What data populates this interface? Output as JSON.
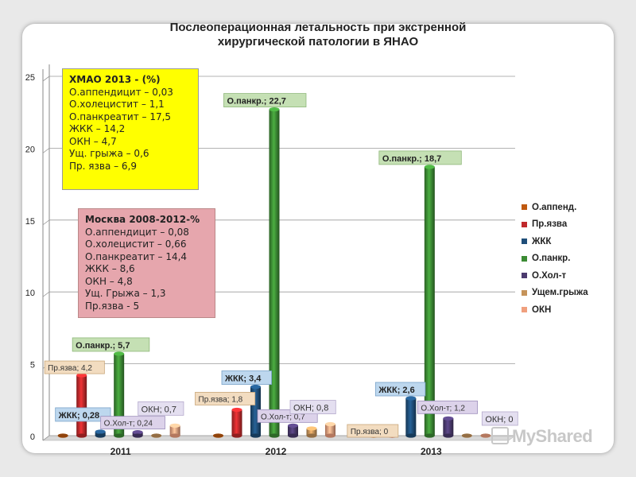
{
  "title_lines": [
    "Послеоперационная  летальность  при  экстренной",
    "хирургической патологии в ЯНАО"
  ],
  "info_boxes": {
    "hmao": {
      "title": "ХМАО 2013 -  (%)",
      "lines": [
        "О.аппендицит – 0,03",
        "О.холецистит – 1,1",
        "О.панкреатит – 17,5",
        "ЖКК – 14,2",
        "ОКН – 4,7",
        "Ущ. грыжа – 0,6",
        "Пр. язва – 6,9"
      ]
    },
    "moscow": {
      "title": "Москва 2008-2012-%",
      "lines": [
        "О.аппендицит – 0,08",
        "О.холецистит – 0,66",
        "О.панкреатит – 14,4",
        "ЖКК – 8,6",
        "ОКН – 4,8",
        "Ущ. Грыжа – 1,3",
        "Пр.язва - 5"
      ]
    }
  },
  "watermark": "MyShared",
  "chart_data": {
    "type": "bar",
    "categories": [
      "2011",
      "2012",
      "2013"
    ],
    "ylim": [
      0,
      25
    ],
    "yticks": [
      "0",
      "5",
      "10",
      "15",
      "20",
      "25"
    ],
    "grid": true,
    "legend_position": "right",
    "series": [
      {
        "name": "О.аппенд.",
        "color": "#c0590f",
        "values": [
          0,
          0,
          0
        ]
      },
      {
        "name": "Пр.язва",
        "color": "#c0292b",
        "values": [
          4.2,
          1.8,
          0
        ]
      },
      {
        "name": "ЖКК",
        "color": "#1f4e79",
        "values": [
          0.28,
          3.4,
          2.6
        ]
      },
      {
        "name": "О.панкр.",
        "color": "#3c8b34",
        "values": [
          5.7,
          22.7,
          18.7
        ]
      },
      {
        "name": "О.Хол-т",
        "color": "#4b3a6e",
        "values": [
          0.24,
          0.7,
          1.2
        ]
      },
      {
        "name": "Ущем.грыжа",
        "color": "#c5935a",
        "values": [
          0,
          0.5,
          0
        ]
      },
      {
        "name": "ОКН",
        "color": "#f0a07e",
        "values": [
          0.7,
          0.8,
          0
        ]
      }
    ],
    "data_labels": [
      {
        "text": "Пр.язва; 4,2",
        "cat": 0,
        "series": 1,
        "style": "tan",
        "dx": -40,
        "dy": -18
      },
      {
        "text": "О.панкр.; 5,7",
        "cat": 0,
        "series": 3,
        "style": "green",
        "dx": -52,
        "dy": -20
      },
      {
        "text": "ЖКК; 0,28",
        "cat": 0,
        "series": 2,
        "style": "blue",
        "dx": -50,
        "dy": -30
      },
      {
        "text": "О.Хол-т; 0,24",
        "cat": 0,
        "series": 4,
        "style": "purple",
        "dx": -40,
        "dy": -20
      },
      {
        "text": "ОКН; 0,7",
        "cat": 0,
        "series": 6,
        "style": "lavender",
        "dx": -40,
        "dy": -30
      },
      {
        "text": "О.панкр.; 22,7",
        "cat": 1,
        "series": 3,
        "style": "green",
        "dx": -57,
        "dy": -20
      },
      {
        "text": "ЖКК; 3,4",
        "cat": 1,
        "series": 2,
        "style": "blue",
        "dx": -36,
        "dy": -20
      },
      {
        "text": "Пр.язва; 1,8",
        "cat": 1,
        "series": 1,
        "style": "tan",
        "dx": -46,
        "dy": -22
      },
      {
        "text": "О.Хол-т; 0,7",
        "cat": 1,
        "series": 4,
        "style": "purple",
        "dx": -38,
        "dy": -20
      },
      {
        "text": "ОКН; 0,8",
        "cat": 1,
        "series": 6,
        "style": "lavender",
        "dx": -44,
        "dy": -30
      },
      {
        "text": "О.панкр.; 18,7",
        "cat": 2,
        "series": 3,
        "style": "green",
        "dx": -57,
        "dy": -20
      },
      {
        "text": "ЖКК; 2,6",
        "cat": 2,
        "series": 2,
        "style": "blue",
        "dx": -38,
        "dy": -20
      },
      {
        "text": "О.Хол-т; 1,2",
        "cat": 2,
        "series": 4,
        "style": "purple",
        "dx": -32,
        "dy": -22
      },
      {
        "text": "Пр.язва; 0",
        "cat": 2,
        "series": 1,
        "style": "tan",
        "dx": -50,
        "dy": -14
      },
      {
        "text": "ОКН; 0",
        "cat": 2,
        "series": 6,
        "style": "lavender",
        "dx": 2,
        "dy": -30
      }
    ]
  }
}
